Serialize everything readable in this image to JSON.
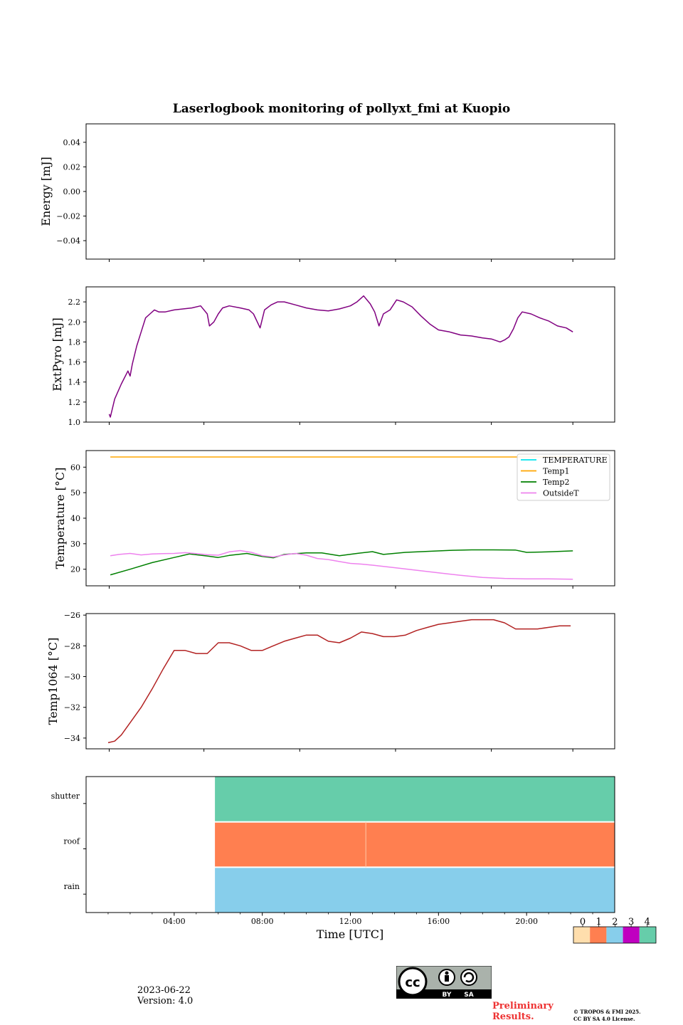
{
  "chart_data": [
    {
      "type": "line",
      "title": "Laserlogbook monitoring of pollyxt_fmi at Kuopio",
      "ylabel": "Energy [mJ]",
      "ylim": [
        -0.055,
        0.055
      ],
      "yticks": [
        "0.04",
        "0.02",
        "0.00",
        "−0.02",
        "−0.04"
      ],
      "ytick_values": [
        0.04,
        0.02,
        0.0,
        -0.02,
        -0.04
      ],
      "series": []
    },
    {
      "type": "line",
      "ylabel": "ExtPyro [mJ]",
      "ylim": [
        1.0,
        2.35
      ],
      "yticks": [
        "1.0",
        "1.2",
        "1.4",
        "1.6",
        "1.8",
        "2.0",
        "2.2"
      ],
      "ytick_values": [
        1.0,
        1.2,
        1.4,
        1.6,
        1.8,
        2.0,
        2.2
      ],
      "series": [
        {
          "name": "ExtPyro",
          "color": "#800080",
          "x": [
            1.05,
            1.1,
            1.3,
            1.6,
            1.9,
            2.0,
            2.1,
            2.3,
            2.5,
            2.7,
            2.9,
            3.1,
            3.3,
            3.6,
            4.0,
            4.4,
            4.8,
            5.2,
            5.5,
            5.6,
            5.8,
            6.0,
            6.2,
            6.5,
            7.0,
            7.4,
            7.6,
            7.9,
            8.1,
            8.4,
            8.7,
            9.0,
            9.5,
            10.0,
            10.5,
            11.0,
            11.5,
            12.0,
            12.3,
            12.6,
            12.9,
            13.1,
            13.3,
            13.5,
            13.8,
            14.1,
            14.4,
            14.8,
            15.2,
            15.6,
            16.0,
            16.5,
            17.0,
            17.5,
            18.0,
            18.4,
            18.8,
            19.0,
            19.2,
            19.4,
            19.6,
            19.8,
            20.2,
            20.6,
            21.0,
            21.4,
            21.8,
            22.1
          ],
          "y": [
            1.08,
            1.05,
            1.23,
            1.38,
            1.51,
            1.46,
            1.58,
            1.76,
            1.9,
            2.04,
            2.08,
            2.12,
            2.1,
            2.1,
            2.12,
            2.13,
            2.14,
            2.16,
            2.08,
            1.96,
            2.0,
            2.08,
            2.14,
            2.16,
            2.14,
            2.12,
            2.08,
            1.94,
            2.12,
            2.17,
            2.2,
            2.2,
            2.17,
            2.14,
            2.12,
            2.11,
            2.13,
            2.16,
            2.2,
            2.26,
            2.18,
            2.1,
            1.96,
            2.08,
            2.12,
            2.22,
            2.2,
            2.15,
            2.06,
            1.98,
            1.92,
            1.9,
            1.87,
            1.86,
            1.84,
            1.83,
            1.8,
            1.82,
            1.85,
            1.93,
            2.04,
            2.1,
            2.08,
            2.04,
            2.01,
            1.96,
            1.94,
            1.9
          ]
        }
      ]
    },
    {
      "type": "line",
      "ylabel": "Temperature [°C]",
      "ylim": [
        13.5,
        66.5
      ],
      "yticks": [
        "20",
        "30",
        "40",
        "50",
        "60"
      ],
      "ytick_values": [
        20,
        30,
        40,
        50,
        60
      ],
      "legend_position": "top-right",
      "series": [
        {
          "name": "TEMPERATURE",
          "color": "#00e5ee",
          "x": [],
          "y": []
        },
        {
          "name": "Temp1",
          "color": "#ffa500",
          "x": [
            1.1,
            22.1
          ],
          "y": [
            64,
            64
          ]
        },
        {
          "name": "Temp2",
          "color": "#008000",
          "x": [
            1.1,
            2.0,
            3.0,
            4.0,
            4.7,
            5.5,
            6.0,
            6.5,
            7.3,
            8.0,
            8.5,
            9.0,
            10.0,
            10.7,
            11.5,
            12.3,
            13.0,
            13.5,
            14.5,
            15.5,
            16.5,
            17.5,
            18.5,
            19.5,
            20.0,
            21.0,
            22.1
          ],
          "y": [
            17.8,
            20.0,
            22.6,
            24.6,
            26.0,
            25.2,
            24.6,
            25.4,
            26.2,
            25.0,
            24.5,
            25.8,
            26.4,
            26.4,
            25.3,
            26.2,
            26.9,
            25.8,
            26.6,
            27.0,
            27.4,
            27.6,
            27.6,
            27.5,
            26.6,
            26.8,
            27.2
          ]
        },
        {
          "name": "OutsideT",
          "color": "#ee82ee",
          "x": [
            1.1,
            1.5,
            2.0,
            2.5,
            3.0,
            3.5,
            4.0,
            4.5,
            5.0,
            5.5,
            6.0,
            6.5,
            7.0,
            7.5,
            8.0,
            8.5,
            9.0,
            9.5,
            10.0,
            10.5,
            11.0,
            11.5,
            12.0,
            12.5,
            13.0,
            14.0,
            15.0,
            16.0,
            17.0,
            18.0,
            19.0,
            20.0,
            21.0,
            22.1
          ],
          "y": [
            25.3,
            25.8,
            26.2,
            25.6,
            26.0,
            26.1,
            26.2,
            26.5,
            26.1,
            25.7,
            25.5,
            26.8,
            27.3,
            26.6,
            25.3,
            24.8,
            25.6,
            26.2,
            25.5,
            24.2,
            23.8,
            23.0,
            22.3,
            22.0,
            21.6,
            20.6,
            19.6,
            18.6,
            17.6,
            16.8,
            16.4,
            16.2,
            16.2,
            16.1
          ]
        }
      ]
    },
    {
      "type": "line",
      "ylabel": "Temp1064 [°C]",
      "ylim": [
        -34.7,
        -25.9
      ],
      "yticks": [
        "−26",
        "−28",
        "−30",
        "−32",
        "−34"
      ],
      "ytick_values": [
        -26,
        -28,
        -30,
        -32,
        -34
      ],
      "series": [
        {
          "name": "Temp1064",
          "color": "#b22222",
          "x": [
            1.0,
            1.3,
            1.6,
            2.0,
            2.5,
            3.0,
            3.5,
            4.0,
            4.5,
            5.0,
            5.5,
            6.0,
            6.5,
            7.0,
            7.5,
            8.0,
            8.5,
            9.0,
            9.5,
            10.0,
            10.5,
            11.0,
            11.5,
            12.0,
            12.5,
            13.0,
            13.5,
            14.0,
            14.5,
            15.0,
            15.5,
            16.0,
            16.5,
            17.0,
            17.5,
            18.0,
            18.5,
            19.0,
            19.5,
            20.0,
            20.5,
            21.0,
            21.5,
            22.0
          ],
          "y": [
            -34.3,
            -34.2,
            -33.8,
            -33.0,
            -32.0,
            -30.8,
            -29.5,
            -28.3,
            -28.3,
            -28.5,
            -28.5,
            -27.8,
            -27.8,
            -28.0,
            -28.3,
            -28.3,
            -28.0,
            -27.7,
            -27.5,
            -27.3,
            -27.3,
            -27.7,
            -27.8,
            -27.5,
            -27.1,
            -27.2,
            -27.4,
            -27.4,
            -27.3,
            -27.0,
            -26.8,
            -26.6,
            -26.5,
            -26.4,
            -26.3,
            -26.3,
            -26.3,
            -26.5,
            -26.9,
            -26.9,
            -26.9,
            -26.8,
            -26.7,
            -26.7
          ]
        }
      ]
    },
    {
      "type": "heatmap",
      "rows": [
        "shutter",
        "roof",
        "rain"
      ],
      "xlabel": "Time [UTC]",
      "xlim": [
        0,
        24
      ],
      "xtick_labels": [
        "04:00",
        "08:00",
        "12:00",
        "16:00",
        "20:00"
      ],
      "xtick_values": [
        4,
        8,
        12,
        16,
        20
      ],
      "segments": [
        {
          "row": "shutter",
          "start": 5.85,
          "end": 24,
          "category": 4
        },
        {
          "row": "roof",
          "start": 5.85,
          "end": 24,
          "category": 1
        },
        {
          "row": "rain",
          "start": 5.85,
          "end": 24,
          "category": 2
        }
      ],
      "colorbar": {
        "labels": [
          "0",
          "1",
          "2",
          "3",
          "4"
        ],
        "colors": [
          "#ffdead",
          "#ff7f50",
          "#87ceeb",
          "#c000c0",
          "#66cdaa"
        ]
      }
    }
  ],
  "footer": {
    "date": "2023-06-22",
    "version": "Version: 4.0",
    "preliminary_line1": "Preliminary",
    "preliminary_line2": "Results.",
    "copyright_line1": "© TROPOS & FMI 2025.",
    "copyright_line2": "CC BY SA 4.0 License.",
    "license_by": "BY",
    "license_sa": "SA",
    "license_cc": "cc"
  }
}
